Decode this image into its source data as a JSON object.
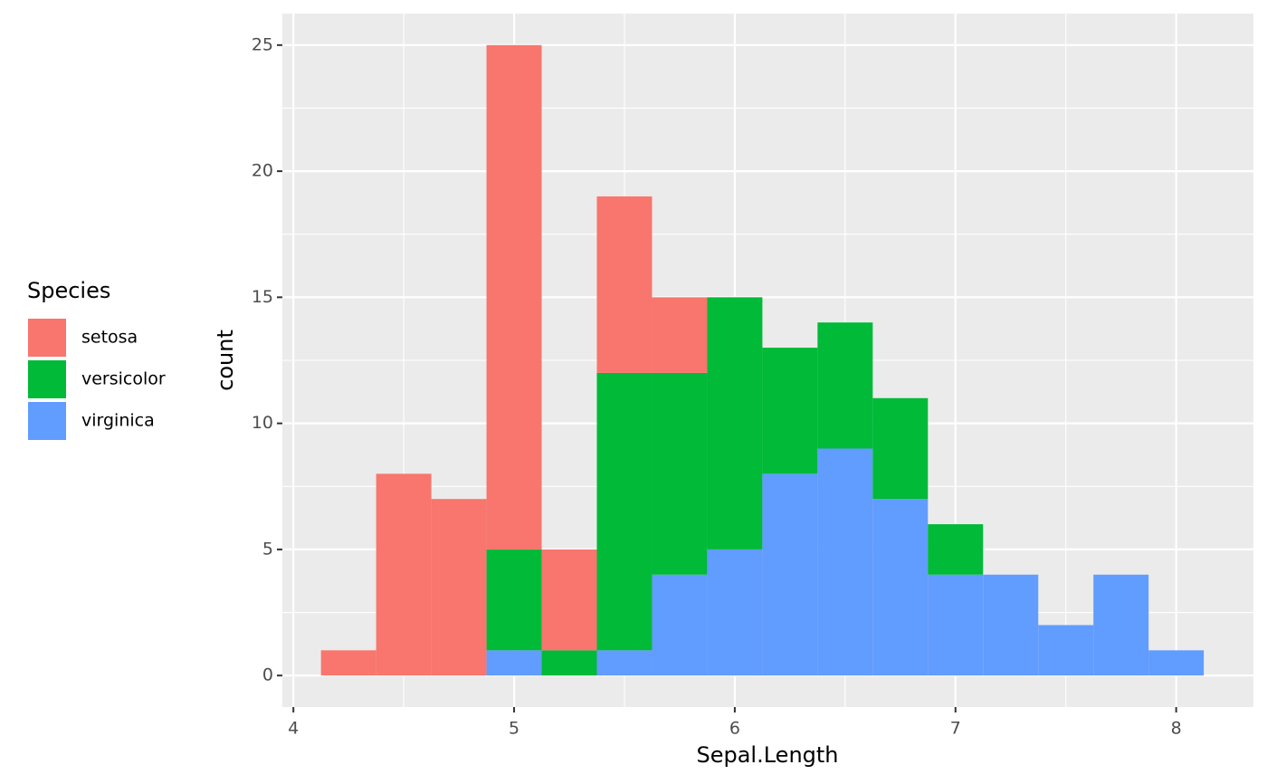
{
  "chart_data": {
    "type": "histogram",
    "bins": [
      4.125,
      4.375,
      4.625,
      4.875,
      5.125,
      5.375,
      5.625,
      5.875,
      6.125,
      6.375,
      6.625,
      6.875,
      7.125,
      7.375,
      7.625,
      7.875,
      8.125
    ],
    "series": [
      {
        "name": "setosa",
        "color": "#F8766D",
        "values": [
          1,
          8,
          7,
          20,
          4,
          7,
          3,
          0,
          0,
          0,
          0,
          0,
          0,
          0,
          0,
          0
        ]
      },
      {
        "name": "versicolor",
        "color": "#00BA38",
        "values": [
          0,
          0,
          0,
          4,
          1,
          11,
          8,
          10,
          5,
          5,
          4,
          2,
          0,
          0,
          0,
          0
        ]
      },
      {
        "name": "virginica",
        "color": "#619CFF",
        "values": [
          0,
          0,
          0,
          1,
          0,
          1,
          4,
          5,
          8,
          9,
          7,
          4,
          4,
          2,
          4,
          1
        ]
      }
    ],
    "stacked": true,
    "x_label": "Sepal.Length",
    "y_label": "count",
    "legend_title": "Species",
    "xlim": [
      3.95,
      8.35
    ],
    "xticks": [
      4,
      5,
      6,
      7,
      8
    ],
    "ylim": [
      -1.25,
      26.25
    ],
    "yticks": [
      0,
      5,
      10,
      15,
      20,
      25
    ],
    "grid": true,
    "legend_position": "left"
  }
}
